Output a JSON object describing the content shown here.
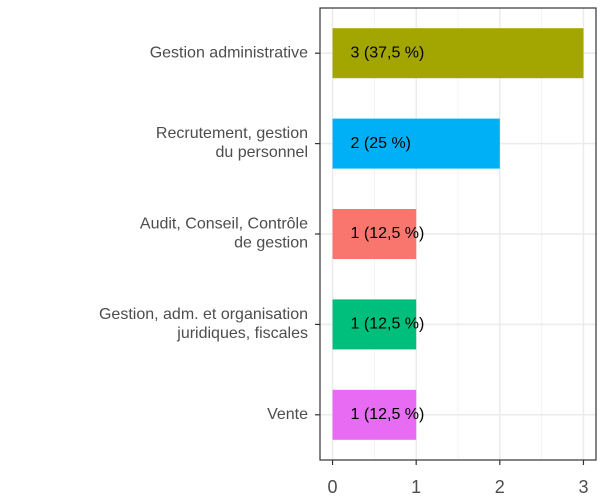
{
  "chart_data": {
    "type": "bar",
    "orientation": "horizontal",
    "categories": [
      "Gestion administrative",
      "Recrutement, gestion\ndu personnel",
      "Audit, Conseil, Contrôle\nde gestion",
      "Gestion, adm. et organisation\njuridiques, fiscales",
      "Vente"
    ],
    "values": [
      3,
      2,
      1,
      1,
      1
    ],
    "value_labels": [
      "3 (37,5 %)",
      "2 (25 %)",
      "1 (12,5 %)",
      "1 (12,5 %)",
      "1 (12,5 %)"
    ],
    "colors": [
      "#A3A500",
      "#00B0F6",
      "#F8766D",
      "#00BF7D",
      "#E76BF3"
    ],
    "xlim": [
      -0.15,
      3.15
    ],
    "xticks": [
      0,
      1,
      2,
      3
    ],
    "minor_grid_x": [
      0.5,
      1.5,
      2.5
    ],
    "grid": true
  }
}
